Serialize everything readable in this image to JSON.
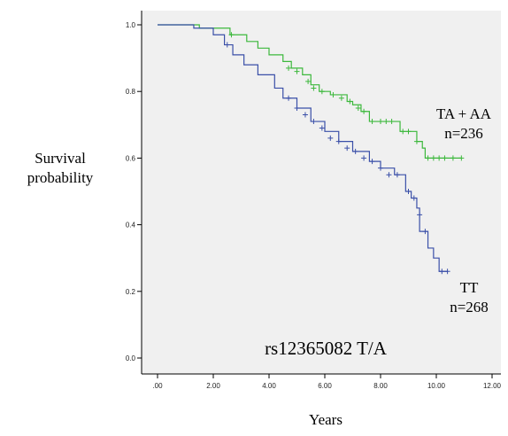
{
  "chart_data": {
    "type": "line",
    "title": "",
    "xlabel": "Years",
    "ylabel_lines": [
      "Survival",
      "probability"
    ],
    "xlim": [
      0,
      12
    ],
    "ylim": [
      0,
      1.0
    ],
    "x_ticks": [
      0,
      2,
      4,
      6,
      8,
      10,
      12
    ],
    "x_tick_labels": [
      ".00",
      "2.00",
      "4.00",
      "6.00",
      "8.00",
      "10.00",
      "12.00"
    ],
    "y_ticks": [
      0,
      0.2,
      0.4,
      0.6,
      0.8,
      1.0
    ],
    "y_tick_labels": [
      "0.0",
      "0.2",
      "0.4",
      "0.6",
      "0.8",
      "1.0"
    ],
    "grid": false,
    "background_color": "#f0f0f0",
    "annotation": "rs12365082 T/A",
    "series": [
      {
        "name": "TA + AA",
        "count_label": "n=236",
        "color": "#3cb83c",
        "step": true,
        "x": [
          0,
          1.5,
          2.6,
          3.2,
          3.6,
          4.0,
          4.5,
          4.8,
          5.2,
          5.5,
          5.8,
          6.2,
          6.8,
          7.0,
          7.3,
          7.6,
          8.7,
          9.3,
          9.5,
          9.6,
          10.9
        ],
        "y": [
          1.0,
          0.99,
          0.97,
          0.95,
          0.93,
          0.91,
          0.89,
          0.87,
          0.85,
          0.82,
          0.8,
          0.79,
          0.77,
          0.76,
          0.74,
          0.71,
          0.68,
          0.65,
          0.63,
          0.6,
          0.6
        ],
        "censored": [
          [
            2.65,
            0.97
          ],
          [
            4.7,
            0.87
          ],
          [
            5.0,
            0.86
          ],
          [
            5.4,
            0.83
          ],
          [
            5.6,
            0.81
          ],
          [
            5.9,
            0.8
          ],
          [
            6.3,
            0.79
          ],
          [
            6.6,
            0.78
          ],
          [
            6.9,
            0.77
          ],
          [
            7.2,
            0.75
          ],
          [
            7.4,
            0.74
          ],
          [
            7.7,
            0.71
          ],
          [
            8.0,
            0.71
          ],
          [
            8.2,
            0.71
          ],
          [
            8.4,
            0.71
          ],
          [
            8.8,
            0.68
          ],
          [
            9.0,
            0.68
          ],
          [
            9.3,
            0.65
          ],
          [
            9.7,
            0.6
          ],
          [
            9.9,
            0.6
          ],
          [
            10.1,
            0.6
          ],
          [
            10.3,
            0.6
          ],
          [
            10.6,
            0.6
          ],
          [
            10.9,
            0.6
          ]
        ]
      },
      {
        "name": "TT",
        "count_label": "n=268",
        "color": "#3a4fa8",
        "step": true,
        "x": [
          0,
          1.3,
          2.0,
          2.4,
          2.7,
          3.1,
          3.6,
          4.2,
          4.5,
          5.0,
          5.5,
          6.0,
          6.5,
          7.0,
          7.6,
          8.0,
          8.5,
          8.9,
          9.1,
          9.3,
          9.4,
          9.7,
          9.9,
          10.1,
          10.4
        ],
        "y": [
          1.0,
          0.99,
          0.97,
          0.94,
          0.91,
          0.88,
          0.85,
          0.81,
          0.78,
          0.75,
          0.71,
          0.68,
          0.65,
          0.62,
          0.59,
          0.57,
          0.55,
          0.5,
          0.48,
          0.45,
          0.38,
          0.33,
          0.3,
          0.26,
          0.26
        ],
        "censored": [
          [
            2.5,
            0.94
          ],
          [
            4.7,
            0.78
          ],
          [
            5.0,
            0.75
          ],
          [
            5.3,
            0.73
          ],
          [
            5.6,
            0.71
          ],
          [
            5.9,
            0.69
          ],
          [
            6.2,
            0.66
          ],
          [
            6.5,
            0.65
          ],
          [
            6.8,
            0.63
          ],
          [
            7.1,
            0.62
          ],
          [
            7.4,
            0.6
          ],
          [
            7.7,
            0.59
          ],
          [
            8.0,
            0.57
          ],
          [
            8.3,
            0.55
          ],
          [
            8.6,
            0.55
          ],
          [
            9.0,
            0.5
          ],
          [
            9.2,
            0.48
          ],
          [
            9.4,
            0.43
          ],
          [
            9.6,
            0.38
          ],
          [
            10.2,
            0.26
          ],
          [
            10.4,
            0.26
          ]
        ]
      }
    ]
  }
}
